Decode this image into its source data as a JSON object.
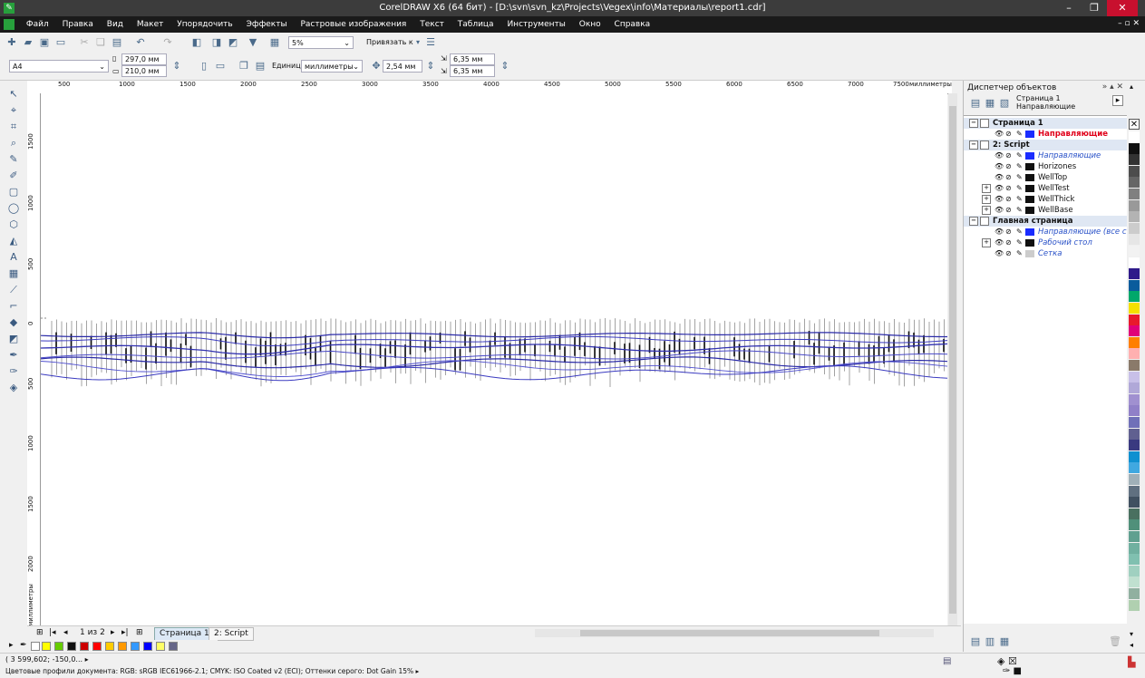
{
  "window": {
    "title": "CorelDRAW X6 (64 бит) - [D:\\svn\\svn_kz\\Projects\\Vegex\\info\\Материалы\\report1.cdr]",
    "min": "–",
    "max": "❐",
    "close": "✕"
  },
  "menu": {
    "items": [
      "Файл",
      "Правка",
      "Вид",
      "Макет",
      "Упорядочить",
      "Эффекты",
      "Растровые изображения",
      "Текст",
      "Таблица",
      "Инструменты",
      "Окно",
      "Справка"
    ],
    "mdi_controls": "– ▫ ✕"
  },
  "toolbar1": {
    "zoom": "5%",
    "snap_label": "Привязать к"
  },
  "toolbar2": {
    "page_size": "A4",
    "width": "297,0 мм",
    "height": "210,0 мм",
    "units_label": "Единицы:",
    "units_value": "миллиметры",
    "nudge": "2,54 мм",
    "dup_x": "6,35 мм",
    "dup_y": "6,35 мм"
  },
  "ruler": {
    "h_ticks": [
      "500",
      "1000",
      "1500",
      "2000",
      "2500",
      "3000",
      "3500",
      "4000",
      "4500",
      "5000",
      "5500",
      "6000",
      "6500",
      "7000",
      "7500"
    ],
    "h_unit": "миллиметры",
    "v_ticks": [
      "1500",
      "1000",
      "500",
      "0",
      "500",
      "1000",
      "1500",
      "2000"
    ],
    "v_unit": "миллиметры"
  },
  "pagenav": {
    "count": "1 из 2",
    "tabs": [
      "Страница 1",
      "2: Script"
    ]
  },
  "object_manager": {
    "title": "Диспетчер объектов",
    "current_page": "Страница 1",
    "current_layer": "Направляющие",
    "rows": [
      {
        "type": "group",
        "name": "Страница 1"
      },
      {
        "type": "layer",
        "name": "Направляющие",
        "style": "red",
        "color": "#1a2cff",
        "expand": false
      },
      {
        "type": "group",
        "name": "2: Script"
      },
      {
        "type": "layer",
        "name": "Направляющие",
        "style": "ital",
        "color": "#1a2cff",
        "expand": false
      },
      {
        "type": "layer",
        "name": "Horizones",
        "style": "",
        "color": "#111111",
        "expand": false
      },
      {
        "type": "layer",
        "name": "WellTop",
        "style": "",
        "color": "#111111",
        "expand": false
      },
      {
        "type": "layer",
        "name": "WellTest",
        "style": "",
        "color": "#111111",
        "expand": true
      },
      {
        "type": "layer",
        "name": "WellThick",
        "style": "",
        "color": "#111111",
        "expand": true
      },
      {
        "type": "layer",
        "name": "WellBase",
        "style": "",
        "color": "#111111",
        "expand": true
      },
      {
        "type": "group",
        "name": "Главная страница"
      },
      {
        "type": "layer",
        "name": "Направляющие (все стран",
        "style": "ital",
        "color": "#1a2cff",
        "expand": false
      },
      {
        "type": "layer",
        "name": "Рабочий стол",
        "style": "ital",
        "color": "#111111",
        "expand": true
      },
      {
        "type": "layer",
        "name": "Сетка",
        "style": "ital",
        "color": "#cccccc",
        "expand": false
      }
    ]
  },
  "status": {
    "coords": "( 3 599,602; -150,0... ▸",
    "profiles": "Цветовые профили документа: RGB: sRGB IEC61966-2.1; CMYK: ISO Coated v2 (ECI); Оттенки серого: Dot Gain 15% ▸"
  },
  "colors": {
    "doc_palette": [
      "#ffff00",
      "#66cc00",
      "#111111",
      "#cc0000",
      "#ff0000",
      "#ffcc00",
      "#ff9900",
      "#3399ff",
      "#0000ff",
      "#ffff66",
      "#666688"
    ],
    "palette": [
      "#ffffff",
      "#111111",
      "#333333",
      "#4d4d4d",
      "#666666",
      "#808080",
      "#999999",
      "#b3b3b3",
      "#cccccc",
      "#e6e6e6",
      "#f2f2f2",
      "#ffffff",
      "#2e1a8a",
      "#0a5c9c",
      "#00a86b",
      "#f5e000",
      "#e8192c",
      "#e0007a",
      "#ff7f00",
      "#ffb0b0",
      "#8a7a6a",
      "#c8c0e8",
      "#b0a8d8",
      "#a090d0",
      "#9080c8",
      "#7070b8",
      "#606090",
      "#3a3a80",
      "#1090d0",
      "#40a8e0",
      "#a0b0b8",
      "#607080",
      "#405060",
      "#4a7060",
      "#50907a",
      "#60a090",
      "#70b0a0",
      "#80c0b0",
      "#a0d0c0",
      "#c0e0d0",
      "#90b0a0",
      "#b0d0b0"
    ]
  }
}
